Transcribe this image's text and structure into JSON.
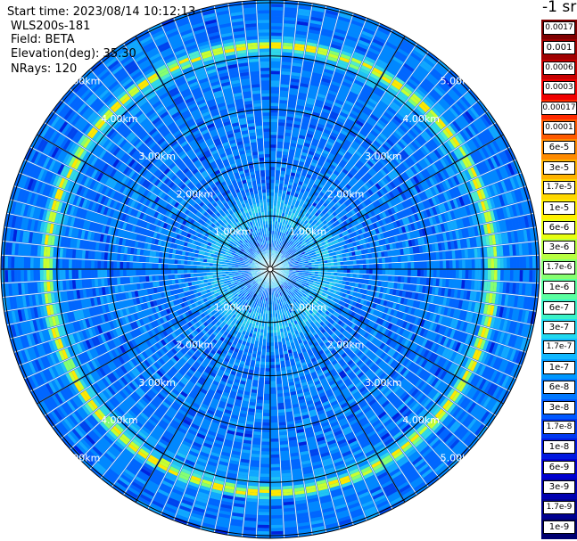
{
  "header": {
    "start_time": "Start time: 2023/08/14 10:12:13",
    "device": "WLS200s-181",
    "field": "Field: BETA",
    "elevation": "Elevation(deg): 35.30",
    "nrays": "NRays: 120",
    "unit": "-1 sr"
  },
  "chart_data": {
    "type": "heatmap",
    "subtype": "polar PPI scan",
    "field": "BETA",
    "n_rays": 120,
    "elevation_deg": 35.3,
    "range_rings_km": [
      1,
      2,
      3,
      4,
      5
    ],
    "range_labels": [
      "1.00km",
      "2.00km",
      "3.00km",
      "4.00km",
      "5.00km"
    ],
    "enhanced_bands_km": [
      {
        "range_km": [
          0.85,
          1.35
        ],
        "level": "3e-7 to 1e-6"
      },
      {
        "range_km": [
          4.1,
          4.3
        ],
        "level": "1.7e-5 to 1e-4"
      }
    ],
    "background_level": "1e-8 to 1e-7",
    "colorbar_ticks": [
      "0.0017",
      "0.001",
      "0.0006",
      "0.0003",
      "0.00017",
      "0.0001",
      "6e-5",
      "3e-5",
      "1.7e-5",
      "1e-5",
      "6e-6",
      "3e-6",
      "1.7e-6",
      "1e-6",
      "6e-7",
      "3e-7",
      "1.7e-7",
      "1e-7",
      "6e-8",
      "3e-8",
      "1.7e-8",
      "1e-8",
      "6e-9",
      "3e-9",
      "1.7e-9",
      "1e-9"
    ],
    "colorbar_colors": [
      "#7f0000",
      "#a00000",
      "#c80000",
      "#f00000",
      "#ff2a00",
      "#ff5a00",
      "#ff8a00",
      "#ffb300",
      "#ffd700",
      "#fff000",
      "#e8ff10",
      "#b8ff40",
      "#86ff70",
      "#5affa0",
      "#3af2c8",
      "#20d8f0",
      "#10b8ff",
      "#0098ff",
      "#0078ff",
      "#0058ff",
      "#0038f0",
      "#0018e0",
      "#0000d0",
      "#0000b0",
      "#000090",
      "#000070"
    ],
    "grid": true
  }
}
